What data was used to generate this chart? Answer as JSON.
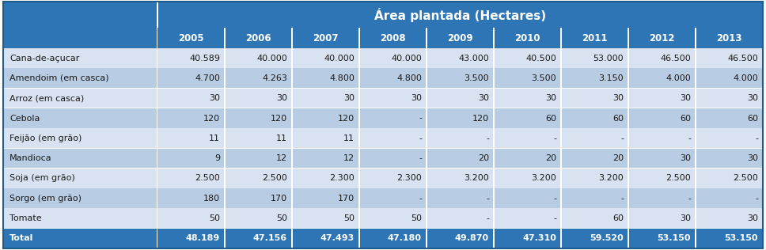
{
  "title": "Área plantada (Hectares)",
  "years": [
    "2005",
    "2006",
    "2007",
    "2008",
    "2009",
    "2010",
    "2011",
    "2012",
    "2013"
  ],
  "rows": [
    {
      "label": "Cana-de-açucar",
      "values": [
        "40.589",
        "40.000",
        "40.000",
        "40.000",
        "43.000",
        "40.500",
        "53.000",
        "46.500",
        "46.500"
      ],
      "bold": false
    },
    {
      "label": "Amendoim (em casca)",
      "values": [
        "4.700",
        "4.263",
        "4.800",
        "4.800",
        "3.500",
        "3.500",
        "3.150",
        "4.000",
        "4.000"
      ],
      "bold": false
    },
    {
      "label": "Arroz (em casca)",
      "values": [
        "30",
        "30",
        "30",
        "30",
        "30",
        "30",
        "30",
        "30",
        "30"
      ],
      "bold": false
    },
    {
      "label": "Cebola",
      "values": [
        "120",
        "120",
        "120",
        "-",
        "120",
        "60",
        "60",
        "60",
        "60"
      ],
      "bold": false
    },
    {
      "label": "Feijão (em grão)",
      "values": [
        "11",
        "11",
        "11",
        "-",
        "-",
        "-",
        "-",
        "-",
        "-"
      ],
      "bold": false
    },
    {
      "label": "Mandioca",
      "values": [
        "9",
        "12",
        "12",
        "-",
        "20",
        "20",
        "20",
        "30",
        "30"
      ],
      "bold": false
    },
    {
      "label": "Soja (em grão)",
      "values": [
        "2.500",
        "2.500",
        "2.300",
        "2.300",
        "3.200",
        "3.200",
        "3.200",
        "2.500",
        "2.500"
      ],
      "bold": false
    },
    {
      "label": "Sorgo (em grão)",
      "values": [
        "180",
        "170",
        "170",
        "-",
        "-",
        "-",
        "-",
        "-",
        "-"
      ],
      "bold": false
    },
    {
      "label": "Tomate",
      "values": [
        "50",
        "50",
        "50",
        "50",
        "-",
        "-",
        "60",
        "30",
        "30"
      ],
      "bold": false
    },
    {
      "label": "Total",
      "values": [
        "48.189",
        "47.156",
        "47.493",
        "47.180",
        "49.870",
        "47.310",
        "59.520",
        "53.150",
        "53.150"
      ],
      "bold": true
    }
  ],
  "color_title_bg": "#2E75B6",
  "color_title_fg": "#FFFFFF",
  "color_subheader_bg": "#2E75B6",
  "color_subheader_fg": "#FFFFFF",
  "color_row_light": "#D9E2F0",
  "color_row_dark": "#B8CCE4",
  "color_total_bg": "#2E75B6",
  "color_total_fg": "#FFFFFF",
  "color_left_col_bg": "#2E75B6",
  "color_white": "#FFFFFF",
  "fig_w": 9.68,
  "fig_h": 3.16,
  "dpi": 100
}
